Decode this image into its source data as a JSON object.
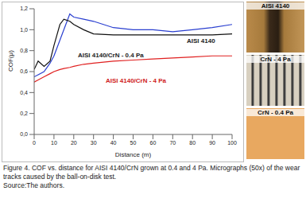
{
  "chart_data": {
    "type": "line",
    "x_label": "Distance (m)",
    "y_label": "COF(μ)",
    "x": [
      0,
      2,
      5,
      8,
      10,
      13,
      15,
      18,
      20,
      25,
      30,
      40,
      50,
      60,
      70,
      80,
      90,
      100
    ],
    "series": [
      {
        "name": "AISI 4140",
        "color": "#2a3fd0",
        "values": [
          0.55,
          0.57,
          0.6,
          0.68,
          0.75,
          0.9,
          1.0,
          1.15,
          1.12,
          1.1,
          1.08,
          1.02,
          1.0,
          1.0,
          0.98,
          1.0,
          1.02,
          1.05
        ]
      },
      {
        "name": "AISI 4140/CrN - 0.4 Pa",
        "color": "#111111",
        "values": [
          0.62,
          0.7,
          0.65,
          0.7,
          0.85,
          1.05,
          1.1,
          1.08,
          1.05,
          1.0,
          0.96,
          0.95,
          0.95,
          0.95,
          0.95,
          0.95,
          0.95,
          0.96
        ]
      },
      {
        "name": "AISI 4140/CrN - 4 Pa",
        "color": "#e02020",
        "values": [
          0.5,
          0.52,
          0.55,
          0.58,
          0.6,
          0.62,
          0.63,
          0.64,
          0.65,
          0.67,
          0.68,
          0.7,
          0.71,
          0.72,
          0.73,
          0.74,
          0.75,
          0.75
        ]
      }
    ],
    "xlim": [
      0,
      100
    ],
    "xticks": [
      0,
      10,
      20,
      30,
      40,
      50,
      60,
      70,
      80,
      90,
      100
    ],
    "ylim": [
      0,
      1.2
    ],
    "yticks": [
      {
        "value": 0,
        "label": "0,0"
      },
      {
        "value": 0.2,
        "label": "0,2"
      },
      {
        "value": 0.4,
        "label": "0,4"
      },
      {
        "value": 0.6,
        "label": "0,6"
      },
      {
        "value": 0.8,
        "label": "0,8"
      },
      {
        "value": 1.0,
        "label": "1,0"
      },
      {
        "value": 1.2,
        "label": "1,2"
      }
    ],
    "grid": false
  },
  "micrographs": [
    "AISI 4140",
    "CrN - 4 Pa",
    "CrN - 0.4 Pa"
  ],
  "caption": [
    "Figure 4. COF vs. distance for AISI 4140/CrN grown at 0.4 and 4 Pa. Micrographs (50x) of the wear tracks caused by the ball-on-disk test.",
    "Source:The authors."
  ]
}
